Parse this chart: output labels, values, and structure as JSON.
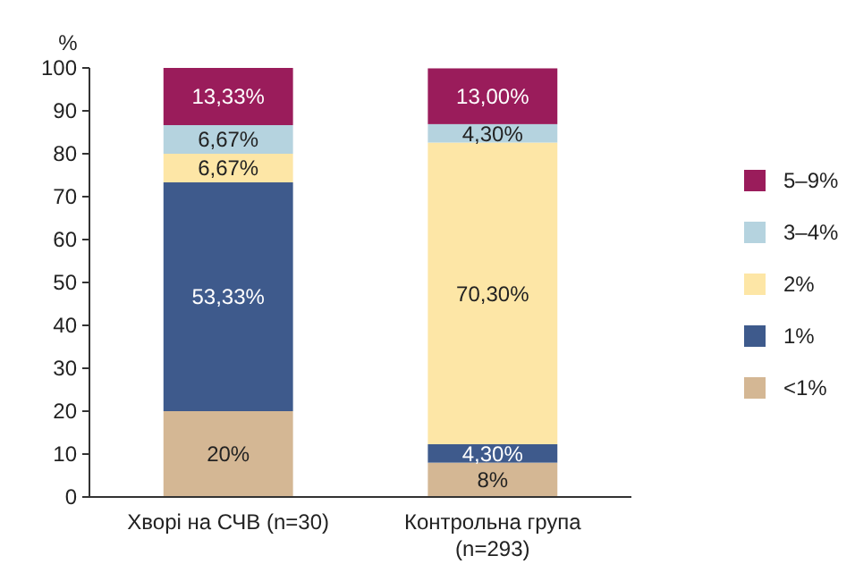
{
  "chart_data": {
    "type": "bar",
    "stacked": true,
    "ylabel": "%",
    "categories": [
      "Хворі на СЧВ (n=30)",
      "Контрольна група (n=293)"
    ],
    "ylim": [
      0,
      100
    ],
    "yticks": [
      0,
      10,
      20,
      30,
      40,
      50,
      60,
      70,
      80,
      90,
      100
    ],
    "grid": false,
    "legend": "right",
    "series": [
      {
        "name": "<1%",
        "color": "#d4b794",
        "values": [
          20,
          8
        ],
        "value_labels": [
          "20%",
          "8%"
        ]
      },
      {
        "name": "1%",
        "color": "#3e5a8c",
        "values": [
          53.33,
          4.3
        ],
        "value_labels": [
          "53,33%",
          "4,30%"
        ]
      },
      {
        "name": "2%",
        "color": "#fde6a6",
        "values": [
          6.67,
          70.3
        ],
        "value_labels": [
          "6,67%",
          "70,30%"
        ]
      },
      {
        "name": "3–4%",
        "color": "#b5d3df",
        "values": [
          6.67,
          4.3
        ],
        "value_labels": [
          "6,67%",
          "4,30%"
        ]
      },
      {
        "name": "5–9%",
        "color": "#9a1c5b",
        "values": [
          13.33,
          13
        ],
        "value_labels": [
          "13,33%",
          "13,00%"
        ]
      }
    ]
  }
}
